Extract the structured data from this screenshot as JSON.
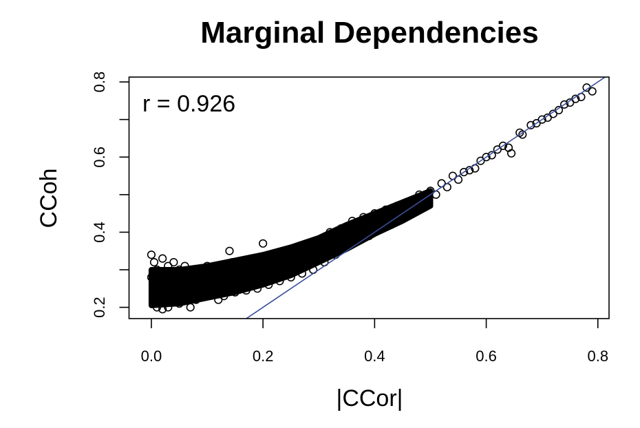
{
  "chart_data": {
    "type": "scatter",
    "title": "Marginal Dependencies",
    "xlabel": "|CCor|",
    "ylabel": "CCoh",
    "xlim": [
      -0.04,
      0.82
    ],
    "ylim": [
      0.17,
      0.813
    ],
    "xticks": [
      0.0,
      0.2,
      0.4,
      0.6,
      0.8
    ],
    "xtick_labels": [
      "0.0",
      "0.2",
      "0.4",
      "0.6",
      "0.8"
    ],
    "yticks": [
      0.2,
      0.3,
      0.4,
      0.5,
      0.6,
      0.7,
      0.8
    ],
    "ytick_labels": [
      "0.2",
      "",
      "0.4",
      "",
      "0.6",
      "",
      "0.8"
    ],
    "annotation": "r =  0.926",
    "grid": false,
    "marker": "open-circle",
    "point_color": "#000000",
    "reference_line": {
      "type": "identity",
      "slope": 1,
      "intercept": 0,
      "color": "#3a4f9a"
    },
    "dense_band": {
      "x": [
        0.0,
        0.05,
        0.1,
        0.15,
        0.2,
        0.25,
        0.3,
        0.35,
        0.4,
        0.45,
        0.5
      ],
      "ymin": [
        0.205,
        0.21,
        0.225,
        0.24,
        0.26,
        0.285,
        0.32,
        0.355,
        0.395,
        0.43,
        0.47
      ],
      "ymax": [
        0.3,
        0.3,
        0.31,
        0.325,
        0.34,
        0.36,
        0.385,
        0.42,
        0.45,
        0.48,
        0.51
      ]
    },
    "points": [
      [
        0.0,
        0.34
      ],
      [
        0.005,
        0.32
      ],
      [
        0.01,
        0.3
      ],
      [
        0.0,
        0.28
      ],
      [
        0.003,
        0.22
      ],
      [
        0.01,
        0.2
      ],
      [
        0.02,
        0.195
      ],
      [
        0.03,
        0.2
      ],
      [
        0.02,
        0.33
      ],
      [
        0.03,
        0.31
      ],
      [
        0.04,
        0.32
      ],
      [
        0.05,
        0.3
      ],
      [
        0.06,
        0.31
      ],
      [
        0.05,
        0.21
      ],
      [
        0.07,
        0.2
      ],
      [
        0.08,
        0.22
      ],
      [
        0.09,
        0.3
      ],
      [
        0.1,
        0.31
      ],
      [
        0.11,
        0.3
      ],
      [
        0.12,
        0.22
      ],
      [
        0.13,
        0.23
      ],
      [
        0.14,
        0.35
      ],
      [
        0.145,
        0.32
      ],
      [
        0.15,
        0.24
      ],
      [
        0.16,
        0.31
      ],
      [
        0.17,
        0.245
      ],
      [
        0.18,
        0.33
      ],
      [
        0.19,
        0.25
      ],
      [
        0.2,
        0.37
      ],
      [
        0.21,
        0.26
      ],
      [
        0.22,
        0.34
      ],
      [
        0.23,
        0.27
      ],
      [
        0.24,
        0.35
      ],
      [
        0.25,
        0.28
      ],
      [
        0.26,
        0.36
      ],
      [
        0.27,
        0.29
      ],
      [
        0.28,
        0.37
      ],
      [
        0.29,
        0.3
      ],
      [
        0.3,
        0.38
      ],
      [
        0.31,
        0.32
      ],
      [
        0.32,
        0.4
      ],
      [
        0.33,
        0.34
      ],
      [
        0.34,
        0.41
      ],
      [
        0.35,
        0.36
      ],
      [
        0.36,
        0.43
      ],
      [
        0.37,
        0.38
      ],
      [
        0.38,
        0.44
      ],
      [
        0.39,
        0.39
      ],
      [
        0.4,
        0.45
      ],
      [
        0.41,
        0.41
      ],
      [
        0.42,
        0.46
      ],
      [
        0.43,
        0.42
      ],
      [
        0.44,
        0.47
      ],
      [
        0.45,
        0.44
      ],
      [
        0.46,
        0.48
      ],
      [
        0.47,
        0.46
      ],
      [
        0.48,
        0.5
      ],
      [
        0.49,
        0.48
      ],
      [
        0.5,
        0.51
      ],
      [
        0.51,
        0.5
      ],
      [
        0.52,
        0.53
      ],
      [
        0.53,
        0.52
      ],
      [
        0.54,
        0.55
      ],
      [
        0.55,
        0.54
      ],
      [
        0.56,
        0.56
      ],
      [
        0.57,
        0.565
      ],
      [
        0.58,
        0.57
      ],
      [
        0.59,
        0.59
      ],
      [
        0.6,
        0.6
      ],
      [
        0.61,
        0.605
      ],
      [
        0.62,
        0.62
      ],
      [
        0.63,
        0.63
      ],
      [
        0.64,
        0.625
      ],
      [
        0.645,
        0.61
      ],
      [
        0.66,
        0.665
      ],
      [
        0.665,
        0.66
      ],
      [
        0.68,
        0.685
      ],
      [
        0.69,
        0.69
      ],
      [
        0.7,
        0.7
      ],
      [
        0.71,
        0.705
      ],
      [
        0.72,
        0.715
      ],
      [
        0.73,
        0.725
      ],
      [
        0.74,
        0.74
      ],
      [
        0.75,
        0.745
      ],
      [
        0.76,
        0.755
      ],
      [
        0.77,
        0.76
      ],
      [
        0.78,
        0.785
      ],
      [
        0.79,
        0.775
      ]
    ]
  }
}
